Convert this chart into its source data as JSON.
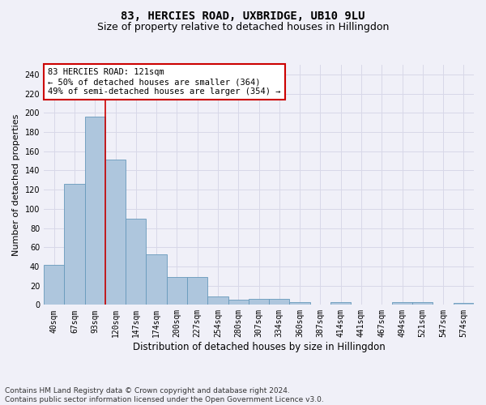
{
  "title": "83, HERCIES ROAD, UXBRIDGE, UB10 9LU",
  "subtitle": "Size of property relative to detached houses in Hillingdon",
  "xlabel": "Distribution of detached houses by size in Hillingdon",
  "ylabel": "Number of detached properties",
  "categories": [
    "40sqm",
    "67sqm",
    "93sqm",
    "120sqm",
    "147sqm",
    "174sqm",
    "200sqm",
    "227sqm",
    "254sqm",
    "280sqm",
    "307sqm",
    "334sqm",
    "360sqm",
    "387sqm",
    "414sqm",
    "441sqm",
    "467sqm",
    "494sqm",
    "521sqm",
    "547sqm",
    "574sqm"
  ],
  "values": [
    42,
    126,
    196,
    151,
    90,
    53,
    29,
    29,
    9,
    5,
    6,
    6,
    3,
    0,
    3,
    0,
    0,
    3,
    3,
    0,
    2
  ],
  "bar_color": "#aec6dd",
  "bar_edge_color": "#6699bb",
  "vline_color": "#cc0000",
  "annotation_text": "83 HERCIES ROAD: 121sqm\n← 50% of detached houses are smaller (364)\n49% of semi-detached houses are larger (354) →",
  "annotation_box_color": "#ffffff",
  "annotation_box_edge_color": "#cc0000",
  "ylim": [
    0,
    250
  ],
  "yticks": [
    0,
    20,
    40,
    60,
    80,
    100,
    120,
    140,
    160,
    180,
    200,
    220,
    240
  ],
  "footer_text": "Contains HM Land Registry data © Crown copyright and database right 2024.\nContains public sector information licensed under the Open Government Licence v3.0.",
  "bg_color": "#f0f0f8",
  "grid_color": "#d8d8e8",
  "title_fontsize": 10,
  "subtitle_fontsize": 9,
  "xlabel_fontsize": 8.5,
  "ylabel_fontsize": 8,
  "tick_fontsize": 7,
  "annotation_fontsize": 7.5,
  "footer_fontsize": 6.5
}
